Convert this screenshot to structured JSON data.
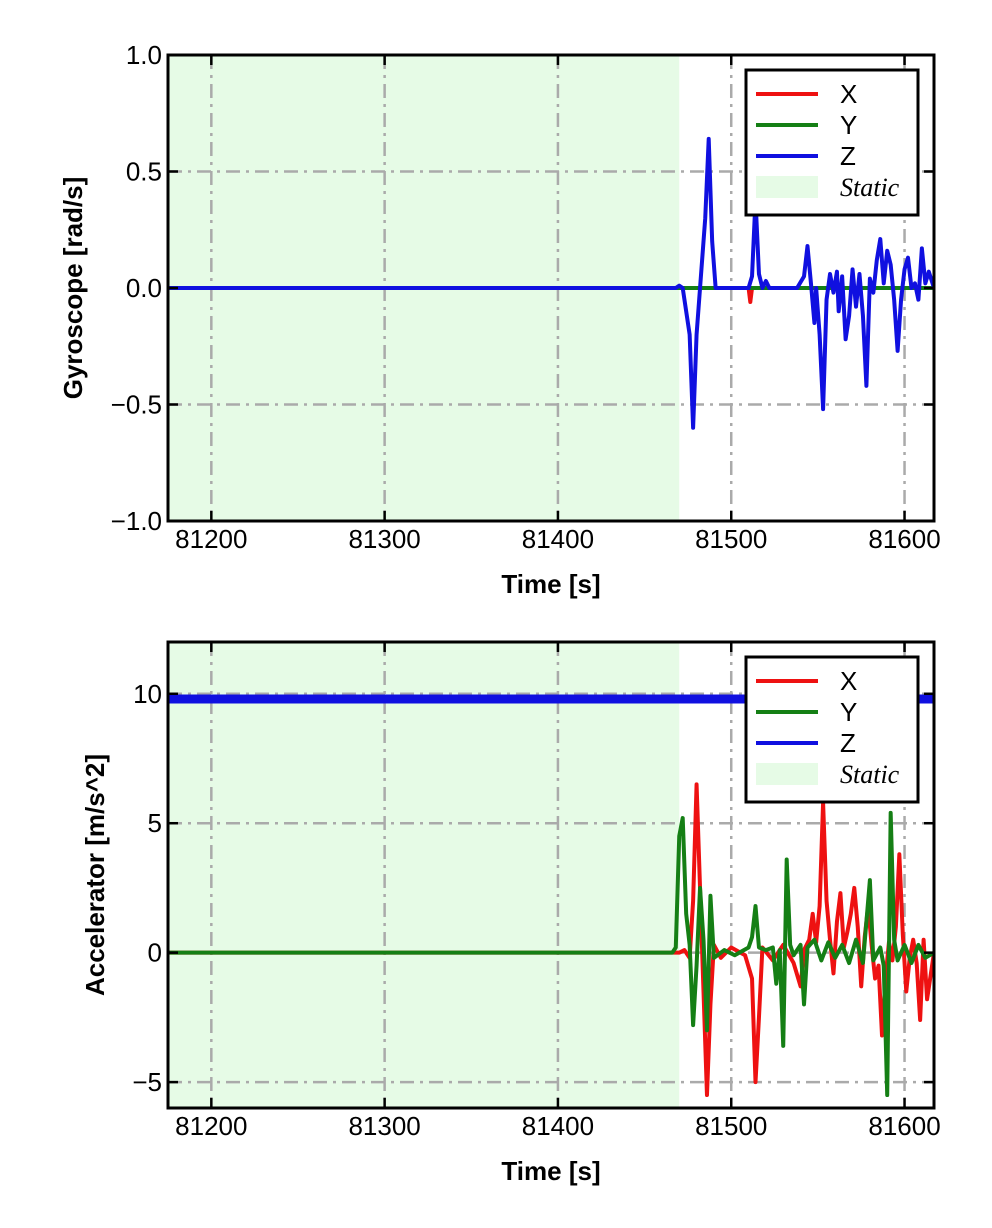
{
  "chart_data": [
    {
      "type": "line",
      "xlabel": "Time [s]",
      "ylabel": "Gyroscope [rad/s]",
      "xlim": [
        81175,
        81617
      ],
      "ylim": [
        -1.0,
        1.0
      ],
      "x_ticks": [
        81200,
        81300,
        81400,
        81500,
        81600
      ],
      "y_ticks": [
        -1.0,
        -0.5,
        0.0,
        0.5,
        1.0
      ],
      "y_tick_labels": [
        "−1.0",
        "−0.5",
        "0.0",
        "0.5",
        "1.0"
      ],
      "grid": true,
      "legend_position": "top-right",
      "static_region": {
        "label": "Static",
        "x_start": 81175,
        "x_end": 81470,
        "color": "#e6fbe6"
      },
      "series": [
        {
          "name": "X",
          "color": "#ee1111",
          "points": [
            [
              81175,
              0.0
            ],
            [
              81510,
              0.0
            ],
            [
              81511,
              -0.06
            ],
            [
              81512,
              0.0
            ],
            [
              81617,
              0.0
            ]
          ]
        },
        {
          "name": "Y",
          "color": "#157f15",
          "points": [
            [
              81175,
              0.0
            ],
            [
              81617,
              0.0
            ]
          ]
        },
        {
          "name": "Z",
          "color": "#1010e0",
          "points": [
            [
              81175,
              0.0
            ],
            [
              81468,
              0.0
            ],
            [
              81470,
              0.01
            ],
            [
              81472,
              0.0
            ],
            [
              81476,
              -0.2
            ],
            [
              81478,
              -0.6
            ],
            [
              81480,
              -0.2
            ],
            [
              81482,
              0.0
            ],
            [
              81485,
              0.3
            ],
            [
              81487,
              0.64
            ],
            [
              81489,
              0.2
            ],
            [
              81491,
              0.0
            ],
            [
              81510,
              0.0
            ],
            [
              81512,
              0.05
            ],
            [
              81514,
              0.38
            ],
            [
              81516,
              0.06
            ],
            [
              81518,
              0.0
            ],
            [
              81520,
              0.03
            ],
            [
              81522,
              0.0
            ],
            [
              81538,
              0.0
            ],
            [
              81542,
              0.05
            ],
            [
              81544,
              0.18
            ],
            [
              81546,
              0.02
            ],
            [
              81548,
              -0.15
            ],
            [
              81549,
              0.0
            ],
            [
              81551,
              -0.2
            ],
            [
              81553,
              -0.52
            ],
            [
              81555,
              -0.05
            ],
            [
              81557,
              0.06
            ],
            [
              81559,
              -0.02
            ],
            [
              81561,
              0.07
            ],
            [
              81562,
              -0.1
            ],
            [
              81564,
              0.05
            ],
            [
              81566,
              -0.22
            ],
            [
              81568,
              -0.12
            ],
            [
              81570,
              0.08
            ],
            [
              81572,
              -0.08
            ],
            [
              81574,
              0.06
            ],
            [
              81576,
              -0.12
            ],
            [
              81578,
              -0.42
            ],
            [
              81580,
              0.04
            ],
            [
              81582,
              -0.02
            ],
            [
              81584,
              0.12
            ],
            [
              81586,
              0.21
            ],
            [
              81588,
              0.02
            ],
            [
              81590,
              0.16
            ],
            [
              81592,
              0.1
            ],
            [
              81594,
              -0.05
            ],
            [
              81596,
              -0.27
            ],
            [
              81598,
              -0.05
            ],
            [
              81600,
              0.08
            ],
            [
              81602,
              0.13
            ],
            [
              81604,
              0.0
            ],
            [
              81606,
              0.02
            ],
            [
              81608,
              -0.05
            ],
            [
              81610,
              0.17
            ],
            [
              81612,
              0.02
            ],
            [
              81614,
              0.07
            ],
            [
              81617,
              0.0
            ]
          ]
        }
      ]
    },
    {
      "type": "line",
      "xlabel": "Time [s]",
      "ylabel": "Accelerator [m/s^2]",
      "xlim": [
        81175,
        81617
      ],
      "ylim": [
        -6,
        12
      ],
      "x_ticks": [
        81200,
        81300,
        81400,
        81500,
        81600
      ],
      "y_ticks": [
        -5,
        0,
        5,
        10
      ],
      "y_tick_labels": [
        "−5",
        "0",
        "5",
        "10"
      ],
      "grid": true,
      "legend_position": "top-right",
      "static_region": {
        "label": "Static",
        "x_start": 81175,
        "x_end": 81470,
        "color": "#e6fbe6"
      },
      "series": [
        {
          "name": "X",
          "color": "#ee1111",
          "points": [
            [
              81175,
              0.0
            ],
            [
              81470,
              0.0
            ],
            [
              81473,
              0.1
            ],
            [
              81476,
              -0.2
            ],
            [
              81478,
              2.0
            ],
            [
              81480,
              6.5
            ],
            [
              81482,
              2.5
            ],
            [
              81484,
              -1.5
            ],
            [
              81486,
              -5.5
            ],
            [
              81488,
              -2.0
            ],
            [
              81490,
              0.3
            ],
            [
              81494,
              -0.2
            ],
            [
              81500,
              0.2
            ],
            [
              81508,
              -0.1
            ],
            [
              81512,
              -1.0
            ],
            [
              81514,
              -5.0
            ],
            [
              81516,
              -2.5
            ],
            [
              81518,
              0.2
            ],
            [
              81524,
              -0.3
            ],
            [
              81530,
              0.3
            ],
            [
              81536,
              -0.4
            ],
            [
              81540,
              -1.3
            ],
            [
              81542,
              0.1
            ],
            [
              81545,
              0.5
            ],
            [
              81547,
              1.5
            ],
            [
              81549,
              0.4
            ],
            [
              81551,
              1.8
            ],
            [
              81553,
              5.8
            ],
            [
              81555,
              2.0
            ],
            [
              81557,
              0.5
            ],
            [
              81559,
              -0.8
            ],
            [
              81561,
              1.2
            ],
            [
              81563,
              2.3
            ],
            [
              81565,
              0.2
            ],
            [
              81567,
              0.8
            ],
            [
              81569,
              1.5
            ],
            [
              81571,
              2.5
            ],
            [
              81573,
              1.0
            ],
            [
              81575,
              -1.3
            ],
            [
              81577,
              0.6
            ],
            [
              81579,
              1.8
            ],
            [
              81581,
              0.3
            ],
            [
              81583,
              -1.0
            ],
            [
              81585,
              -0.5
            ],
            [
              81587,
              -3.2
            ],
            [
              81589,
              -1.0
            ],
            [
              81591,
              0.4
            ],
            [
              81593,
              -0.3
            ],
            [
              81595,
              1.0
            ],
            [
              81597,
              3.8
            ],
            [
              81599,
              0.7
            ],
            [
              81601,
              -1.5
            ],
            [
              81603,
              -0.2
            ],
            [
              81605,
              0.5
            ],
            [
              81607,
              -0.4
            ],
            [
              81609,
              -2.6
            ],
            [
              81611,
              0.5
            ],
            [
              81613,
              -1.8
            ],
            [
              81617,
              0.0
            ]
          ]
        },
        {
          "name": "Y",
          "color": "#157f15",
          "points": [
            [
              81175,
              0.0
            ],
            [
              81466,
              0.0
            ],
            [
              81468,
              0.2
            ],
            [
              81470,
              4.5
            ],
            [
              81472,
              5.2
            ],
            [
              81474,
              1.5
            ],
            [
              81476,
              0.3
            ],
            [
              81478,
              -2.8
            ],
            [
              81480,
              -0.5
            ],
            [
              81482,
              2.5
            ],
            [
              81484,
              0.5
            ],
            [
              81486,
              -3.0
            ],
            [
              81488,
              2.2
            ],
            [
              81490,
              -0.2
            ],
            [
              81496,
              0.1
            ],
            [
              81502,
              -0.1
            ],
            [
              81510,
              0.2
            ],
            [
              81512,
              0.6
            ],
            [
              81514,
              1.8
            ],
            [
              81516,
              0.2
            ],
            [
              81520,
              0.1
            ],
            [
              81524,
              0.2
            ],
            [
              81526,
              -1.2
            ],
            [
              81528,
              0.1
            ],
            [
              81530,
              -3.6
            ],
            [
              81532,
              3.6
            ],
            [
              81534,
              0.3
            ],
            [
              81536,
              -0.1
            ],
            [
              81540,
              0.3
            ],
            [
              81542,
              -2.0
            ],
            [
              81544,
              0.2
            ],
            [
              81548,
              0.5
            ],
            [
              81552,
              -0.3
            ],
            [
              81556,
              0.4
            ],
            [
              81560,
              -0.2
            ],
            [
              81564,
              0.3
            ],
            [
              81568,
              -0.4
            ],
            [
              81572,
              0.5
            ],
            [
              81576,
              -0.4
            ],
            [
              81580,
              2.8
            ],
            [
              81582,
              -0.3
            ],
            [
              81586,
              0.2
            ],
            [
              81588,
              -0.5
            ],
            [
              81590,
              -5.5
            ],
            [
              81592,
              5.4
            ],
            [
              81594,
              0.5
            ],
            [
              81596,
              -0.3
            ],
            [
              81600,
              0.3
            ],
            [
              81604,
              -0.4
            ],
            [
              81608,
              0.3
            ],
            [
              81612,
              -0.2
            ],
            [
              81617,
              0.0
            ]
          ]
        },
        {
          "name": "Z",
          "color": "#1010e0",
          "points": [
            [
              81175,
              9.8
            ],
            [
              81617,
              9.8
            ]
          ]
        }
      ]
    }
  ]
}
